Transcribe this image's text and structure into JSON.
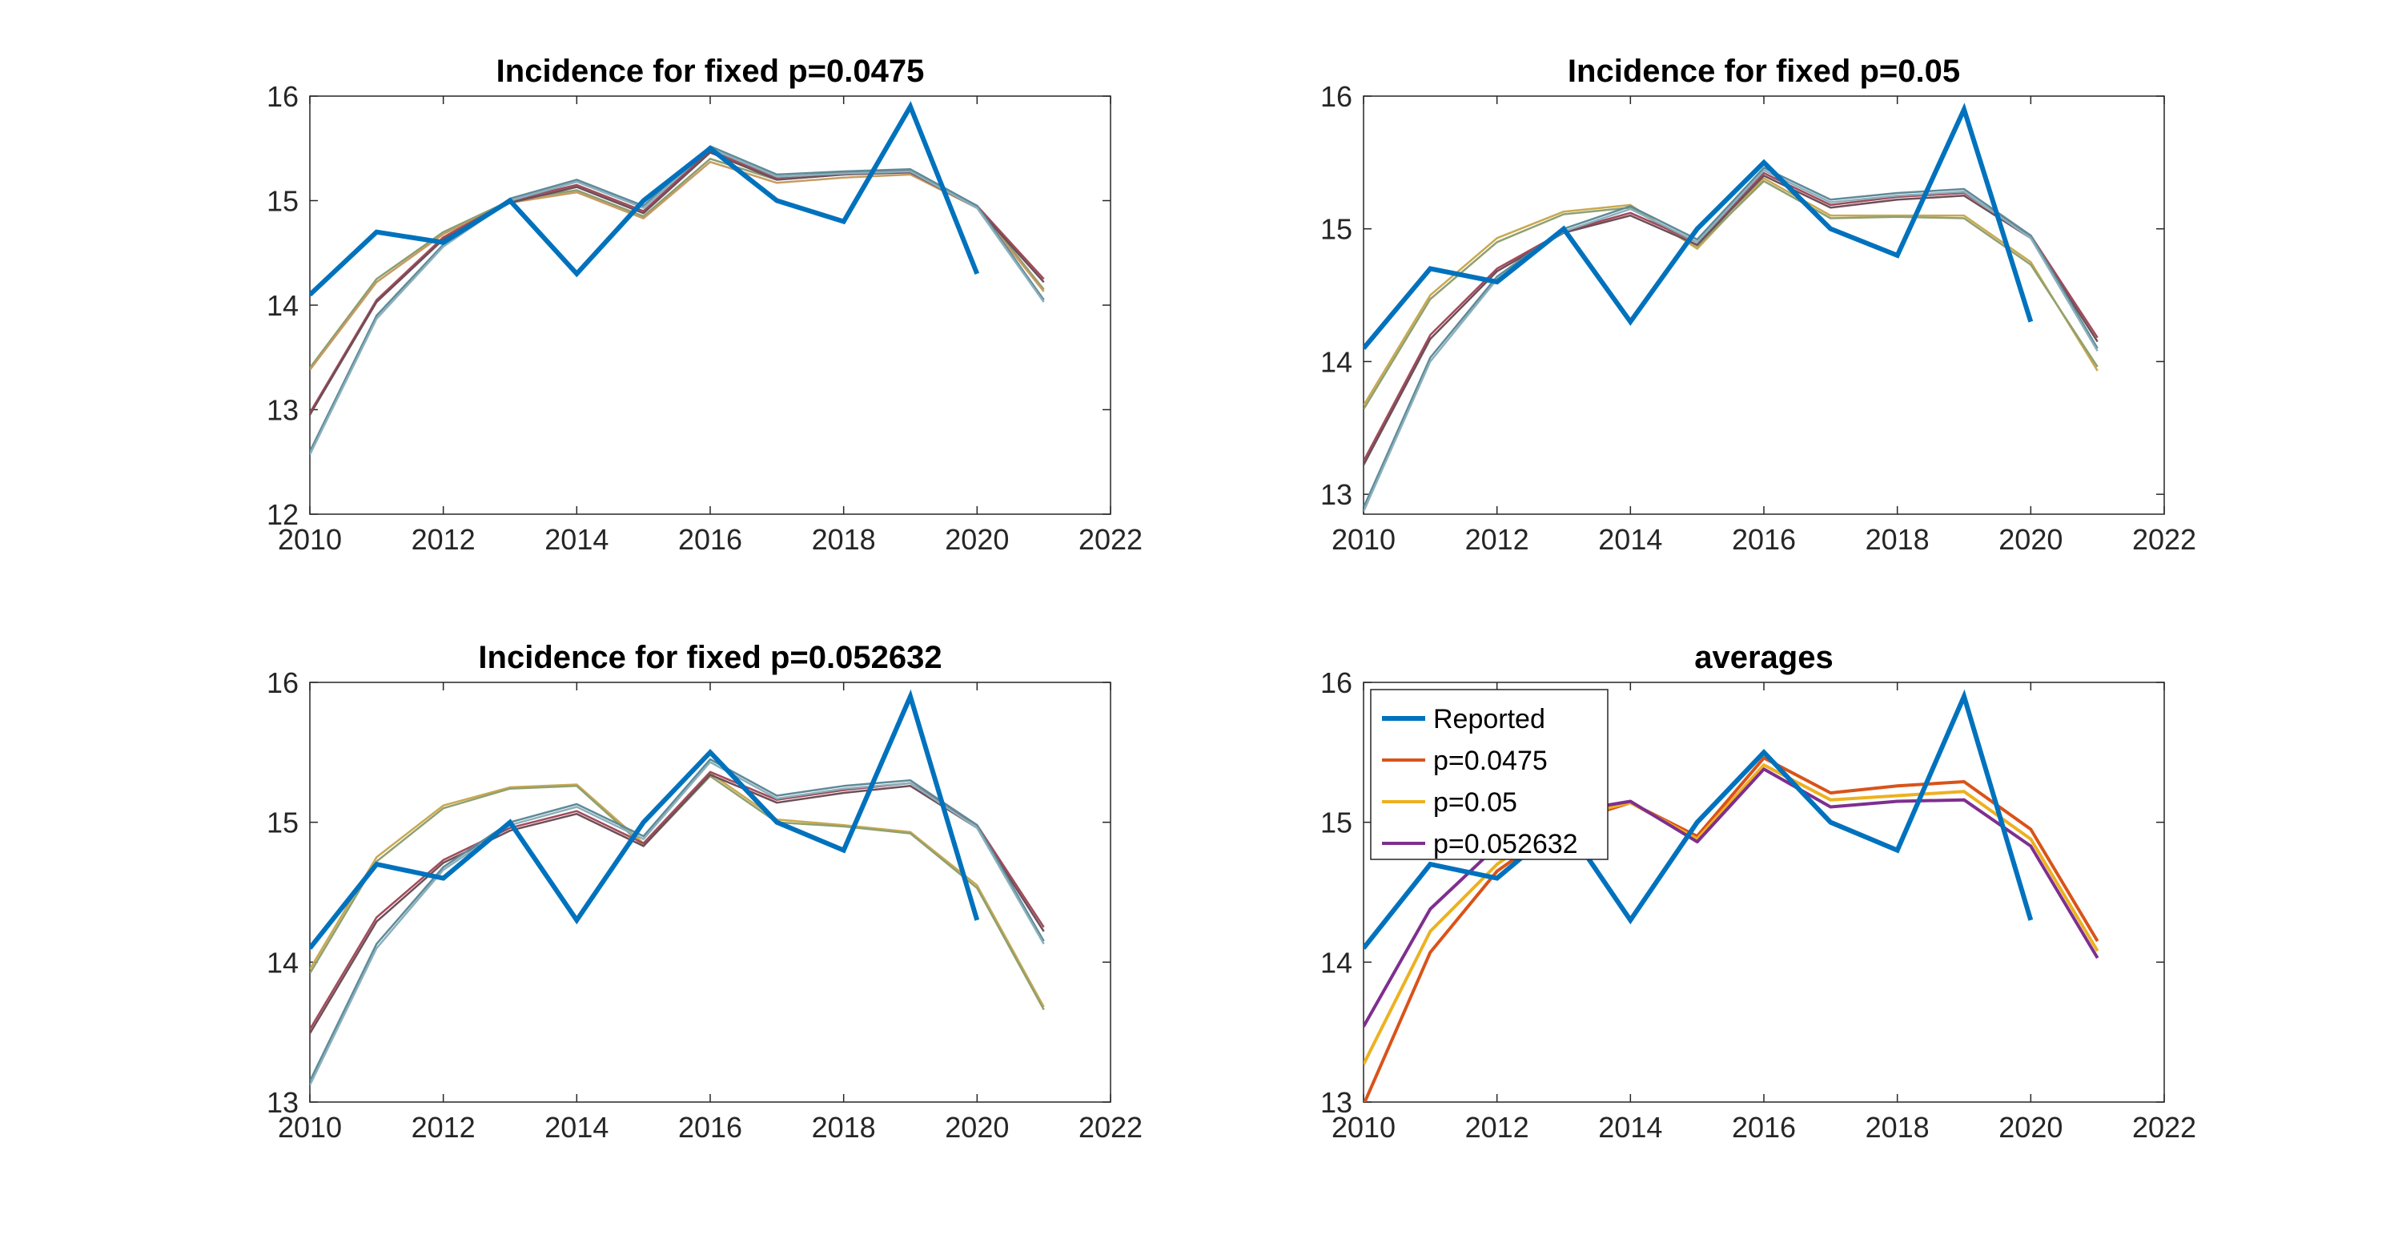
{
  "chart_data": [
    {
      "type": "line",
      "title": "Incidence for fixed p=0.0475",
      "xlim": [
        2010,
        2022
      ],
      "ylim": [
        12,
        16
      ],
      "xticks": [
        "2010",
        "2012",
        "2014",
        "2016",
        "2018",
        "2020",
        "2022"
      ],
      "yticks": [
        "12",
        "13",
        "14",
        "15",
        "16"
      ],
      "grid": false,
      "reported": {
        "x": [
          2010,
          2011,
          2012,
          2013,
          2014,
          2015,
          2016,
          2017,
          2018,
          2019,
          2020
        ],
        "values": [
          14.1,
          14.7,
          14.6,
          15.0,
          14.3,
          15.0,
          15.5,
          15.0,
          14.8,
          15.9,
          14.3
        ],
        "color": "#0072BD"
      },
      "series": [
        {
          "color": "#8A9E6E",
          "x": [
            2010,
            2011,
            2012,
            2013,
            2014,
            2015,
            2016,
            2017,
            2018,
            2019,
            2020,
            2021
          ],
          "values": [
            13.4,
            14.25,
            14.7,
            15.0,
            15.1,
            14.85,
            15.4,
            15.2,
            15.25,
            15.28,
            14.95,
            14.15
          ]
        },
        {
          "color": "#C89A62",
          "x": [
            2010,
            2011,
            2012,
            2013,
            2014,
            2015,
            2016,
            2017,
            2018,
            2019,
            2020,
            2021
          ],
          "values": [
            13.38,
            14.22,
            14.68,
            14.98,
            15.08,
            14.83,
            15.37,
            15.17,
            15.22,
            15.25,
            14.93,
            14.13
          ]
        },
        {
          "color": "#A24A5A",
          "x": [
            2010,
            2011,
            2012,
            2013,
            2014,
            2015,
            2016,
            2017,
            2018,
            2019,
            2020,
            2021
          ],
          "values": [
            12.97,
            14.05,
            14.65,
            15.0,
            15.15,
            14.9,
            15.48,
            15.22,
            15.27,
            15.29,
            14.95,
            14.25
          ]
        },
        {
          "color": "#6E4E58",
          "x": [
            2010,
            2011,
            2012,
            2013,
            2014,
            2015,
            2016,
            2017,
            2018,
            2019,
            2020,
            2021
          ],
          "values": [
            12.95,
            14.03,
            14.63,
            14.98,
            15.13,
            14.88,
            15.46,
            15.2,
            15.25,
            15.27,
            14.93,
            14.22
          ]
        },
        {
          "color": "#5E8A98",
          "x": [
            2010,
            2011,
            2012,
            2013,
            2014,
            2015,
            2016,
            2017,
            2018,
            2019,
            2020,
            2021
          ],
          "values": [
            12.6,
            13.9,
            14.58,
            15.02,
            15.2,
            14.95,
            15.52,
            15.25,
            15.28,
            15.3,
            14.95,
            14.05
          ]
        },
        {
          "color": "#8AB0BC",
          "x": [
            2010,
            2011,
            2012,
            2013,
            2014,
            2015,
            2016,
            2017,
            2018,
            2019,
            2020,
            2021
          ],
          "values": [
            12.57,
            13.87,
            14.56,
            15.0,
            15.18,
            14.93,
            15.5,
            15.23,
            15.26,
            15.28,
            14.93,
            14.03
          ]
        }
      ]
    },
    {
      "type": "line",
      "title": "Incidence for fixed p=0.05",
      "xlim": [
        2010,
        2022
      ],
      "ylim": [
        12.85,
        16
      ],
      "xticks": [
        "2010",
        "2012",
        "2014",
        "2016",
        "2018",
        "2020",
        "2022"
      ],
      "yticks": [
        "13",
        "14",
        "15",
        "16"
      ],
      "grid": false,
      "reported": {
        "x": [
          2010,
          2011,
          2012,
          2013,
          2014,
          2015,
          2016,
          2017,
          2018,
          2019,
          2020
        ],
        "values": [
          14.1,
          14.7,
          14.6,
          15.0,
          14.3,
          15.0,
          15.5,
          15.0,
          14.8,
          15.9,
          14.3
        ],
        "color": "#0072BD"
      },
      "series": [
        {
          "color": "#C9A84E",
          "x": [
            2010,
            2011,
            2012,
            2013,
            2014,
            2015,
            2016,
            2017,
            2018,
            2019,
            2020,
            2021
          ],
          "values": [
            13.67,
            14.5,
            14.93,
            15.13,
            15.18,
            14.85,
            15.38,
            15.1,
            15.1,
            15.1,
            14.75,
            13.93
          ]
        },
        {
          "color": "#8FA070",
          "x": [
            2010,
            2011,
            2012,
            2013,
            2014,
            2015,
            2016,
            2017,
            2018,
            2019,
            2020,
            2021
          ],
          "values": [
            13.64,
            14.47,
            14.9,
            15.11,
            15.16,
            14.87,
            15.36,
            15.08,
            15.09,
            15.08,
            14.73,
            13.96
          ]
        },
        {
          "color": "#A24A5A",
          "x": [
            2010,
            2011,
            2012,
            2013,
            2014,
            2015,
            2016,
            2017,
            2018,
            2019,
            2020,
            2021
          ],
          "values": [
            13.25,
            14.2,
            14.7,
            14.98,
            15.12,
            14.9,
            15.42,
            15.18,
            15.24,
            15.27,
            14.95,
            14.18
          ]
        },
        {
          "color": "#6E4E58",
          "x": [
            2010,
            2011,
            2012,
            2013,
            2014,
            2015,
            2016,
            2017,
            2018,
            2019,
            2020,
            2021
          ],
          "values": [
            13.22,
            14.17,
            14.68,
            14.97,
            15.1,
            14.88,
            15.4,
            15.16,
            15.22,
            15.25,
            14.93,
            14.15
          ]
        },
        {
          "color": "#5E8A98",
          "x": [
            2010,
            2011,
            2012,
            2013,
            2014,
            2015,
            2016,
            2017,
            2018,
            2019,
            2020,
            2021
          ],
          "values": [
            12.9,
            14.03,
            14.64,
            15.0,
            15.17,
            14.92,
            15.46,
            15.22,
            15.27,
            15.3,
            14.95,
            14.1
          ]
        },
        {
          "color": "#8AB0BC",
          "x": [
            2010,
            2011,
            2012,
            2013,
            2014,
            2015,
            2016,
            2017,
            2018,
            2019,
            2020,
            2021
          ],
          "values": [
            12.87,
            14.0,
            14.62,
            14.98,
            15.15,
            14.9,
            15.44,
            15.2,
            15.25,
            15.28,
            14.93,
            14.08
          ]
        }
      ]
    },
    {
      "type": "line",
      "title": "Incidence for fixed p=0.052632",
      "xlim": [
        2010,
        2022
      ],
      "ylim": [
        13,
        16
      ],
      "xticks": [
        "2010",
        "2012",
        "2014",
        "2016",
        "2018",
        "2020",
        "2022"
      ],
      "yticks": [
        "13",
        "14",
        "15",
        "16"
      ],
      "grid": false,
      "reported": {
        "x": [
          2010,
          2011,
          2012,
          2013,
          2014,
          2015,
          2016,
          2017,
          2018,
          2019,
          2020
        ],
        "values": [
          14.1,
          14.7,
          14.6,
          15.0,
          14.3,
          15.0,
          15.5,
          15.0,
          14.8,
          15.9,
          14.3
        ],
        "color": "#0072BD"
      },
      "series": [
        {
          "color": "#C9A84E",
          "x": [
            2010,
            2011,
            2012,
            2013,
            2014,
            2015,
            2016,
            2017,
            2018,
            2019,
            2020,
            2021
          ],
          "values": [
            13.95,
            14.75,
            15.12,
            15.25,
            15.27,
            14.85,
            15.35,
            15.02,
            14.98,
            14.93,
            14.55,
            13.68
          ]
        },
        {
          "color": "#8FA070",
          "x": [
            2010,
            2011,
            2012,
            2013,
            2014,
            2015,
            2016,
            2017,
            2018,
            2019,
            2020,
            2021
          ],
          "values": [
            13.92,
            14.72,
            15.1,
            15.24,
            15.26,
            14.83,
            15.33,
            15.0,
            14.97,
            14.92,
            14.53,
            13.66
          ]
        },
        {
          "color": "#A24A5A",
          "x": [
            2010,
            2011,
            2012,
            2013,
            2014,
            2015,
            2016,
            2017,
            2018,
            2019,
            2020,
            2021
          ],
          "values": [
            13.52,
            14.32,
            14.73,
            14.96,
            15.08,
            14.85,
            15.36,
            15.16,
            15.23,
            15.28,
            14.98,
            14.25
          ]
        },
        {
          "color": "#6E4E58",
          "x": [
            2010,
            2011,
            2012,
            2013,
            2014,
            2015,
            2016,
            2017,
            2018,
            2019,
            2020,
            2021
          ],
          "values": [
            13.49,
            14.29,
            14.71,
            14.94,
            15.06,
            14.83,
            15.34,
            15.14,
            15.21,
            15.26,
            14.96,
            14.22
          ]
        },
        {
          "color": "#5E8A98",
          "x": [
            2010,
            2011,
            2012,
            2013,
            2014,
            2015,
            2016,
            2017,
            2018,
            2019,
            2020,
            2021
          ],
          "values": [
            13.15,
            14.13,
            14.68,
            15.0,
            15.13,
            14.9,
            15.45,
            15.19,
            15.26,
            15.3,
            14.98,
            14.15
          ]
        },
        {
          "color": "#8AB0BC",
          "x": [
            2010,
            2011,
            2012,
            2013,
            2014,
            2015,
            2016,
            2017,
            2018,
            2019,
            2020,
            2021
          ],
          "values": [
            13.12,
            14.1,
            14.66,
            14.98,
            15.11,
            14.88,
            15.43,
            15.17,
            15.24,
            15.28,
            14.96,
            14.13
          ]
        }
      ]
    },
    {
      "type": "line",
      "title": "averages",
      "xlim": [
        2010,
        2022
      ],
      "ylim": [
        13,
        16
      ],
      "xticks": [
        "2010",
        "2012",
        "2014",
        "2016",
        "2018",
        "2020",
        "2022"
      ],
      "yticks": [
        "13",
        "14",
        "15",
        "16"
      ],
      "grid": false,
      "legend_position": "top-left",
      "legend": [
        "Reported",
        "p=0.0475",
        "p=0.05",
        "p=0.052632"
      ],
      "reported": {
        "x": [
          2010,
          2011,
          2012,
          2013,
          2014,
          2015,
          2016,
          2017,
          2018,
          2019,
          2020
        ],
        "values": [
          14.1,
          14.7,
          14.6,
          15.0,
          14.3,
          15.0,
          15.5,
          15.0,
          14.8,
          15.9,
          14.3
        ],
        "color": "#0072BD"
      },
      "series": [
        {
          "name": "p=0.0475",
          "color": "#D95319",
          "x": [
            2010,
            2011,
            2012,
            2013,
            2014,
            2015,
            2016,
            2017,
            2018,
            2019,
            2020,
            2021
          ],
          "values": [
            12.98,
            14.07,
            14.65,
            14.99,
            15.14,
            14.9,
            15.46,
            15.21,
            15.26,
            15.29,
            14.95,
            14.15
          ]
        },
        {
          "name": "p=0.05",
          "color": "#EDB120",
          "x": [
            2010,
            2011,
            2012,
            2013,
            2014,
            2015,
            2016,
            2017,
            2018,
            2019,
            2020,
            2021
          ],
          "values": [
            13.27,
            14.22,
            14.7,
            15.03,
            15.14,
            14.88,
            15.41,
            15.16,
            15.19,
            15.22,
            14.88,
            14.08
          ]
        },
        {
          "name": "p=0.052632",
          "color": "#7E2F8E",
          "x": [
            2010,
            2011,
            2012,
            2013,
            2014,
            2015,
            2016,
            2017,
            2018,
            2019,
            2020,
            2021
          ],
          "values": [
            13.54,
            14.38,
            14.83,
            15.07,
            15.15,
            14.86,
            15.38,
            15.11,
            15.15,
            15.16,
            14.83,
            14.03
          ]
        }
      ]
    }
  ]
}
